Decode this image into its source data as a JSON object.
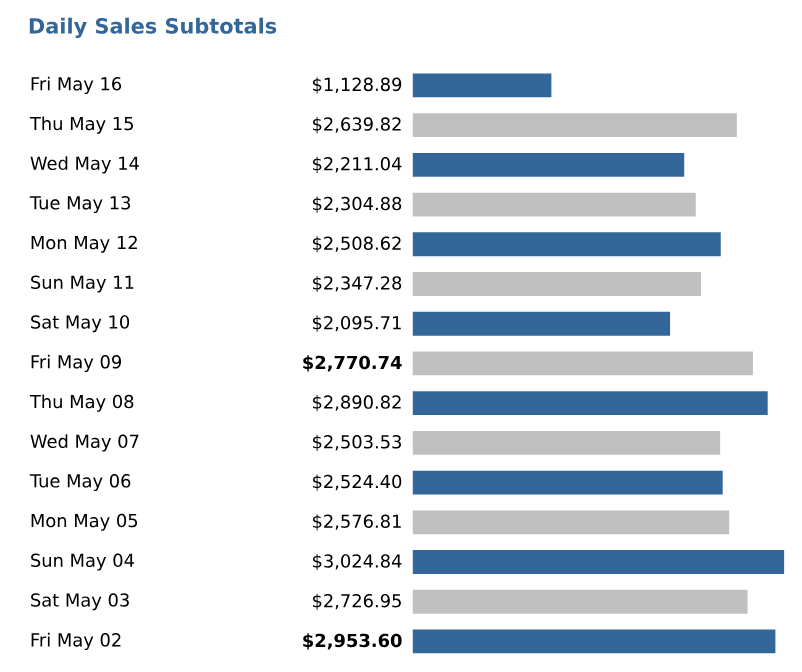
{
  "chart_data": {
    "type": "bar",
    "orientation": "horizontal",
    "title": "Daily Sales Subtotals",
    "categories": [
      "Fri May 16",
      "Thu May 15",
      "Wed May 14",
      "Tue May 13",
      "Mon May 12",
      "Sun May 11",
      "Sat May 10",
      "Fri May 09",
      "Thu May 08",
      "Wed May 07",
      "Tue May 06",
      "Mon May 05",
      "Sun May 04",
      "Sat May 03",
      "Fri May 02"
    ],
    "values": [
      1128.89,
      2639.82,
      2211.04,
      2304.88,
      2508.62,
      2347.28,
      2095.71,
      2770.74,
      2890.82,
      2503.53,
      2524.4,
      2576.81,
      3024.84,
      2726.95,
      2953.6
    ],
    "colors": [
      "#336699",
      "#c0c0c0",
      "#336699",
      "#c0c0c0",
      "#336699",
      "#c0c0c0",
      "#336699",
      "#c0c0c0",
      "#336699",
      "#c0c0c0",
      "#336699",
      "#c0c0c0",
      "#336699",
      "#c0c0c0",
      "#336699"
    ],
    "value_labels": [
      "$1,128.89",
      "$2,639.82",
      "$2,211.04",
      "$2,304.88",
      "$2,508.62",
      "$2,347.28",
      "$2,095.71",
      "**$2,770.74**",
      "$2,890.82",
      "$2,503.53",
      "$2,524.40",
      "$2,576.81",
      "$3,024.84",
      "$2,726.95",
      "**$2,953.60**"
    ]
  }
}
